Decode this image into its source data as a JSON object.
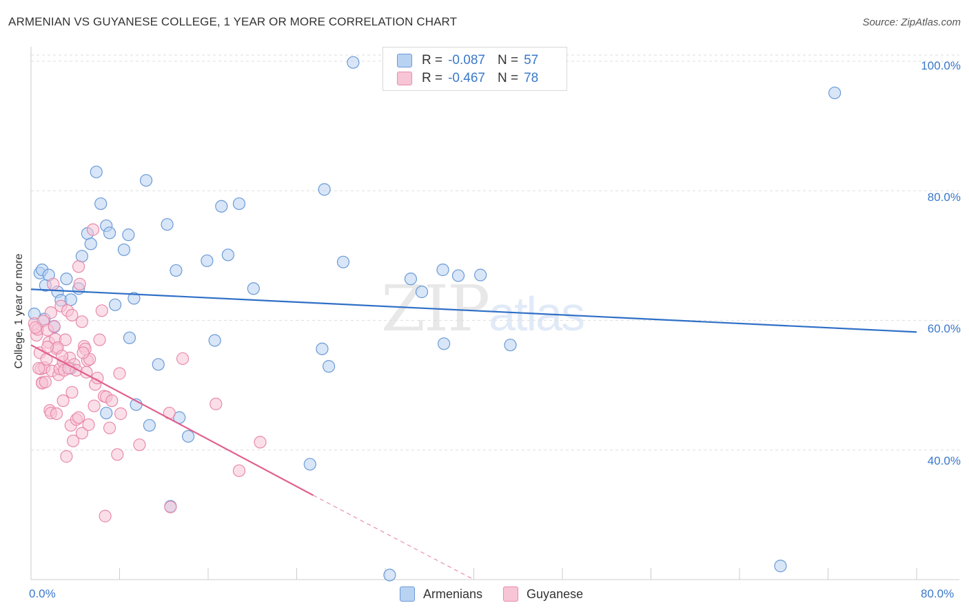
{
  "title": "ARMENIAN VS GUYANESE COLLEGE, 1 YEAR OR MORE CORRELATION CHART",
  "source": "Source: ZipAtlas.com",
  "watermark": {
    "zip": "ZIP",
    "atlas": "atlas"
  },
  "legend": {
    "row1": {
      "r_label": "R =",
      "r_value": "-0.087",
      "n_label": "N =",
      "n_value": "57"
    },
    "row2": {
      "r_label": "R =",
      "r_value": "-0.467",
      "n_label": "N =",
      "n_value": "78"
    }
  },
  "bottom_legend": {
    "armenians": "Armenians",
    "guyanese": "Guyanese"
  },
  "colors": {
    "blue_fill": "#b8d2f2",
    "blue_stroke": "#6a9ad6",
    "blue_line": "#2f6fc6",
    "pink_fill": "#f7c5d5",
    "pink_stroke": "#e88aaa",
    "pink_line": "#e0608e",
    "tick_text": "#3a78c9"
  },
  "chart_data": {
    "type": "scatter",
    "title": "ARMENIAN VS GUYANESE COLLEGE, 1 YEAR OR MORE CORRELATION CHART",
    "xlabel": "",
    "ylabel": "College, 1 year or more",
    "xlim": [
      0,
      80
    ],
    "ylim": [
      20,
      102
    ],
    "x_tick_labels": [
      "0.0%",
      "80.0%"
    ],
    "y_ticks": [
      40,
      60,
      80,
      100
    ],
    "y_tick_labels": [
      "40.0%",
      "60.0%",
      "80.0%",
      "100.0%"
    ],
    "series": [
      {
        "name": "Armenians",
        "r": -0.087,
        "n": 57,
        "trend": {
          "x": [
            0,
            80
          ],
          "y": [
            64.8,
            58.2
          ]
        },
        "points": [
          [
            0.3,
            61.0
          ],
          [
            0.8,
            67.3
          ],
          [
            1.0,
            67.8
          ],
          [
            1.3,
            65.4
          ],
          [
            1.6,
            67.0
          ],
          [
            2.1,
            59.0
          ],
          [
            2.4,
            64.4
          ],
          [
            2.7,
            63.1
          ],
          [
            3.2,
            66.4
          ],
          [
            3.6,
            63.2
          ],
          [
            4.3,
            64.9
          ],
          [
            4.6,
            69.9
          ],
          [
            5.1,
            73.4
          ],
          [
            5.4,
            71.8
          ],
          [
            5.9,
            82.9
          ],
          [
            6.3,
            78.0
          ],
          [
            6.8,
            74.6
          ],
          [
            7.1,
            73.5
          ],
          [
            7.6,
            62.4
          ],
          [
            8.4,
            70.9
          ],
          [
            8.8,
            73.2
          ],
          [
            9.3,
            63.4
          ],
          [
            10.4,
            81.6
          ],
          [
            12.3,
            74.8
          ],
          [
            13.1,
            67.7
          ],
          [
            15.9,
            69.2
          ],
          [
            17.2,
            77.6
          ],
          [
            17.8,
            70.1
          ],
          [
            18.8,
            78.0
          ],
          [
            20.1,
            64.9
          ],
          [
            26.5,
            80.2
          ],
          [
            28.2,
            69.0
          ],
          [
            29.1,
            99.8
          ],
          [
            34.3,
            66.4
          ],
          [
            35.3,
            64.4
          ],
          [
            37.2,
            67.8
          ],
          [
            38.6,
            66.9
          ],
          [
            40.6,
            67.0
          ],
          [
            8.9,
            57.3
          ],
          [
            11.5,
            53.2
          ],
          [
            16.6,
            56.9
          ],
          [
            26.3,
            55.6
          ],
          [
            26.9,
            52.9
          ],
          [
            37.3,
            56.4
          ],
          [
            43.3,
            56.2
          ],
          [
            6.8,
            45.7
          ],
          [
            9.5,
            47.0
          ],
          [
            10.7,
            43.8
          ],
          [
            13.4,
            45.0
          ],
          [
            14.2,
            42.1
          ],
          [
            25.2,
            37.8
          ],
          [
            12.6,
            31.3
          ],
          [
            32.4,
            20.7
          ],
          [
            67.7,
            22.1
          ],
          [
            72.6,
            95.1
          ],
          [
            3.6,
            52.6
          ],
          [
            1.2,
            60.2
          ]
        ]
      },
      {
        "name": "Guyanese",
        "r": -0.467,
        "n": 78,
        "trend": {
          "x": [
            0,
            25.5
          ],
          "y": [
            56.2,
            33.0
          ]
        },
        "trend_dashed": {
          "x": [
            25.5,
            40
          ],
          "y": [
            33.0,
            20.0
          ]
        },
        "points": [
          [
            0.3,
            59.5
          ],
          [
            0.5,
            57.7
          ],
          [
            0.6,
            58.6
          ],
          [
            0.8,
            55.0
          ],
          [
            0.9,
            52.5
          ],
          [
            1.0,
            50.4
          ],
          [
            1.1,
            59.9
          ],
          [
            1.2,
            52.7
          ],
          [
            1.4,
            54.0
          ],
          [
            1.5,
            58.5
          ],
          [
            1.6,
            56.6
          ],
          [
            1.8,
            61.2
          ],
          [
            1.9,
            52.2
          ],
          [
            2.0,
            65.6
          ],
          [
            2.2,
            57.1
          ],
          [
            2.3,
            55.6
          ],
          [
            2.5,
            51.6
          ],
          [
            2.6,
            52.5
          ],
          [
            2.7,
            62.2
          ],
          [
            2.9,
            53.6
          ],
          [
            3.0,
            52.3
          ],
          [
            3.1,
            57.0
          ],
          [
            3.3,
            61.5
          ],
          [
            3.5,
            54.2
          ],
          [
            3.7,
            60.8
          ],
          [
            3.9,
            53.2
          ],
          [
            4.1,
            52.3
          ],
          [
            4.3,
            68.3
          ],
          [
            4.4,
            65.6
          ],
          [
            4.6,
            59.8
          ],
          [
            4.8,
            56.0
          ],
          [
            4.9,
            55.6
          ],
          [
            5.1,
            53.8
          ],
          [
            5.3,
            54.0
          ],
          [
            5.6,
            74.0
          ],
          [
            5.8,
            50.1
          ],
          [
            6.0,
            51.1
          ],
          [
            6.2,
            57.0
          ],
          [
            6.4,
            61.5
          ],
          [
            6.6,
            48.3
          ],
          [
            6.8,
            48.2
          ],
          [
            7.1,
            43.4
          ],
          [
            7.3,
            47.6
          ],
          [
            7.8,
            39.3
          ],
          [
            8.0,
            51.8
          ],
          [
            8.1,
            45.6
          ],
          [
            9.8,
            40.8
          ],
          [
            12.5,
            45.7
          ],
          [
            12.6,
            31.2
          ],
          [
            13.7,
            54.1
          ],
          [
            16.7,
            47.1
          ],
          [
            18.8,
            36.8
          ],
          [
            20.7,
            41.2
          ],
          [
            1.0,
            50.3
          ],
          [
            1.7,
            46.1
          ],
          [
            1.8,
            45.7
          ],
          [
            2.3,
            45.6
          ],
          [
            2.9,
            47.6
          ],
          [
            3.2,
            39.0
          ],
          [
            3.6,
            43.8
          ],
          [
            3.7,
            48.9
          ],
          [
            3.8,
            41.4
          ],
          [
            4.1,
            44.7
          ],
          [
            4.3,
            45.0
          ],
          [
            4.6,
            42.6
          ],
          [
            5.2,
            43.9
          ],
          [
            5.7,
            46.8
          ],
          [
            6.7,
            29.8
          ],
          [
            0.4,
            58.9
          ],
          [
            0.7,
            52.6
          ],
          [
            1.3,
            50.5
          ],
          [
            2.1,
            59.1
          ],
          [
            2.4,
            55.8
          ],
          [
            2.8,
            54.5
          ],
          [
            3.4,
            52.6
          ],
          [
            4.7,
            55.0
          ],
          [
            5.0,
            52.0
          ],
          [
            1.5,
            55.9
          ]
        ]
      }
    ]
  }
}
